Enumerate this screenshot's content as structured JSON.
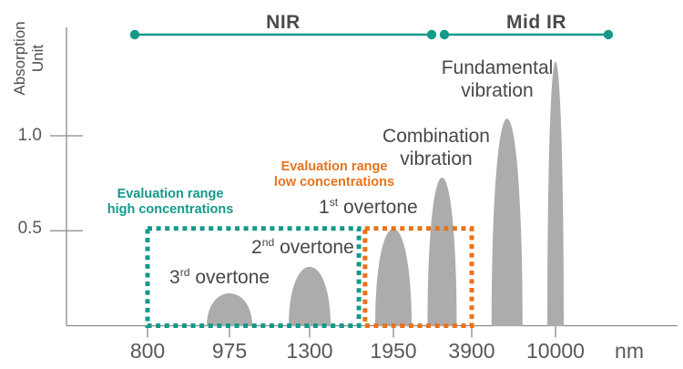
{
  "colors": {
    "teal": "#14998a",
    "orange": "#e7731b",
    "peak_gray": "#acacac",
    "axis_gray": "#8a8a8a"
  },
  "y_axis": {
    "label_line1": "Absorption",
    "label_line2": "Unit",
    "tick_labels": [
      "1.0",
      "0.5"
    ]
  },
  "x_axis": {
    "tick_labels": [
      "800",
      "975",
      "1300",
      "1950",
      "3900",
      "10000"
    ],
    "unit_label": "nm"
  },
  "spectral_regions": {
    "nir_label": "NIR",
    "mid_ir_label": "Mid IR"
  },
  "annotations": {
    "overtone3": {
      "num": "3",
      "sup": "rd",
      "rest": " overtone"
    },
    "overtone2": {
      "num": "2",
      "sup": "nd",
      "rest": " overtone"
    },
    "overtone1": {
      "num": "1",
      "sup": "st",
      "rest": " overtone"
    },
    "combination": {
      "line1": "Combination",
      "line2": "vibration"
    },
    "fundamental": {
      "line1": "Fundamental",
      "line2": "vibration"
    },
    "eval_high": {
      "line1": "Evaluation range",
      "line2": "high concentrations"
    },
    "eval_low": {
      "line1": "Evaluation range",
      "line2": "low concentrations"
    }
  },
  "chart_data": {
    "type": "area",
    "title": "",
    "xlabel": "nm",
    "ylabel": "Absorption Unit",
    "x_scale": "logarithmic-like",
    "x_ticks_nm": [
      800,
      975,
      1300,
      1950,
      3900,
      10000
    ],
    "y_ticks_AU": [
      1.0,
      0.5
    ],
    "ylim": [
      0,
      1.5
    ],
    "grid": false,
    "spectral_regions": [
      {
        "name": "NIR",
        "approx_from_nm": 780,
        "approx_to_nm": 2700
      },
      {
        "name": "Mid IR",
        "approx_from_nm": 2900,
        "approx_to_nm": 14000
      }
    ],
    "evaluation_ranges": [
      {
        "name": "Evaluation range high concentrations",
        "from_nm": 800,
        "to_nm": 1650,
        "up_to_AU": 0.5,
        "color_key": "teal"
      },
      {
        "name": "Evaluation range low concentrations",
        "from_nm": 1700,
        "to_nm": 3900,
        "up_to_AU": 0.5,
        "color_key": "orange"
      }
    ],
    "peaks": [
      {
        "label": "3rd overtone",
        "wavelength_nm": 975,
        "height_AU": 0.17
      },
      {
        "label": "2nd overtone",
        "wavelength_nm": 1300,
        "height_AU": 0.31
      },
      {
        "label": "1st overtone",
        "wavelength_nm": 1950,
        "height_AU": 0.51
      },
      {
        "label": "Combination vibration",
        "wavelength_nm": 3000,
        "height_AU": 0.78
      },
      {
        "label": "Fundamental vibration",
        "wavelength_nm": 5800,
        "height_AU": 1.09
      },
      {
        "label": "Fundamental vibration",
        "wavelength_nm": 10000,
        "height_AU": 1.39
      }
    ]
  }
}
